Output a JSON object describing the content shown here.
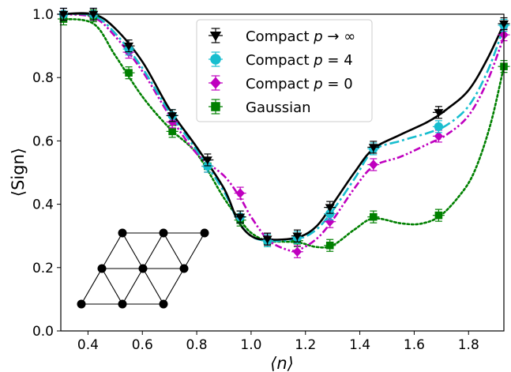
{
  "chart_data": {
    "type": "line",
    "xlabel": "⟨n⟩",
    "ylabel": "⟨Sign⟩",
    "xlim": [
      0.3,
      1.93
    ],
    "ylim": [
      0.0,
      1.0
    ],
    "xticks": [
      "0.4",
      "0.6",
      "0.8",
      "1.0",
      "1.2",
      "1.4",
      "1.6",
      "1.8"
    ],
    "yticks": [
      "0.0",
      "0.2",
      "0.4",
      "0.6",
      "0.8",
      "1.0"
    ],
    "grid": false,
    "legend_position": "top-center",
    "series": [
      {
        "name": "Compact p→∞",
        "legend_label": "Compact ",
        "legend_math": "p",
        "legend_tail": " → ∞",
        "color": "#000000",
        "marker": "triangle-down",
        "linestyle": "solid",
        "points": [
          [
            0.31,
            1.0
          ],
          [
            0.42,
            1.0
          ],
          [
            0.55,
            0.9
          ],
          [
            0.71,
            0.68
          ],
          [
            0.84,
            0.54
          ],
          [
            0.96,
            0.36
          ],
          [
            1.06,
            0.29
          ],
          [
            1.17,
            0.3
          ],
          [
            1.29,
            0.39
          ],
          [
            1.45,
            0.58
          ],
          [
            1.69,
            0.69
          ],
          [
            1.93,
            0.97
          ]
        ],
        "curve": [
          [
            0.3,
            1.0
          ],
          [
            0.42,
            1.0
          ],
          [
            0.5,
            0.955
          ],
          [
            0.6,
            0.85
          ],
          [
            0.7,
            0.7
          ],
          [
            0.8,
            0.58
          ],
          [
            0.9,
            0.45
          ],
          [
            0.95,
            0.35
          ],
          [
            1.0,
            0.3
          ],
          [
            1.06,
            0.288
          ],
          [
            1.17,
            0.295
          ],
          [
            1.24,
            0.33
          ],
          [
            1.3,
            0.4
          ],
          [
            1.38,
            0.5
          ],
          [
            1.45,
            0.575
          ],
          [
            1.55,
            0.62
          ],
          [
            1.65,
            0.66
          ],
          [
            1.72,
            0.7
          ],
          [
            1.8,
            0.76
          ],
          [
            1.87,
            0.86
          ],
          [
            1.93,
            0.97
          ]
        ]
      },
      {
        "name": "Compact p = 4",
        "legend_label": "Compact ",
        "legend_math": "p",
        "legend_tail": " = 4",
        "color": "#17becf",
        "marker": "circle",
        "linestyle": "dashdot",
        "points": [
          [
            0.31,
            1.0
          ],
          [
            0.42,
            1.0
          ],
          [
            0.55,
            0.89
          ],
          [
            0.71,
            0.68
          ],
          [
            0.84,
            0.52
          ],
          [
            0.96,
            0.36
          ],
          [
            1.06,
            0.285
          ],
          [
            1.17,
            0.295
          ],
          [
            1.29,
            0.37
          ],
          [
            1.45,
            0.575
          ],
          [
            1.69,
            0.645
          ],
          [
            1.93,
            0.965
          ]
        ],
        "curve": [
          [
            0.3,
            1.0
          ],
          [
            0.42,
            0.995
          ],
          [
            0.5,
            0.94
          ],
          [
            0.6,
            0.83
          ],
          [
            0.7,
            0.69
          ],
          [
            0.8,
            0.57
          ],
          [
            0.9,
            0.44
          ],
          [
            0.95,
            0.35
          ],
          [
            1.0,
            0.3
          ],
          [
            1.06,
            0.285
          ],
          [
            1.17,
            0.29
          ],
          [
            1.24,
            0.32
          ],
          [
            1.3,
            0.38
          ],
          [
            1.38,
            0.48
          ],
          [
            1.45,
            0.57
          ],
          [
            1.55,
            0.6
          ],
          [
            1.65,
            0.625
          ],
          [
            1.72,
            0.65
          ],
          [
            1.8,
            0.71
          ],
          [
            1.87,
            0.82
          ],
          [
            1.93,
            0.96
          ]
        ]
      },
      {
        "name": "Compact p = 0",
        "legend_label": "Compact ",
        "legend_math": "p",
        "legend_tail": " = 0",
        "color": "#bf00bf",
        "marker": "diamond",
        "linestyle": "dashdotdot",
        "points": [
          [
            0.31,
            1.0
          ],
          [
            0.42,
            1.0
          ],
          [
            0.55,
            0.88
          ],
          [
            0.71,
            0.66
          ],
          [
            0.84,
            0.52
          ],
          [
            0.96,
            0.435
          ],
          [
            1.06,
            0.29
          ],
          [
            1.17,
            0.25
          ],
          [
            1.29,
            0.345
          ],
          [
            1.45,
            0.525
          ],
          [
            1.69,
            0.615
          ],
          [
            1.93,
            0.935
          ]
        ],
        "curve": [
          [
            0.3,
            1.0
          ],
          [
            0.42,
            0.99
          ],
          [
            0.5,
            0.93
          ],
          [
            0.6,
            0.82
          ],
          [
            0.7,
            0.68
          ],
          [
            0.8,
            0.56
          ],
          [
            0.9,
            0.49
          ],
          [
            0.96,
            0.42
          ],
          [
            1.0,
            0.36
          ],
          [
            1.06,
            0.29
          ],
          [
            1.12,
            0.26
          ],
          [
            1.17,
            0.255
          ],
          [
            1.24,
            0.29
          ],
          [
            1.3,
            0.35
          ],
          [
            1.38,
            0.45
          ],
          [
            1.45,
            0.52
          ],
          [
            1.55,
            0.55
          ],
          [
            1.65,
            0.59
          ],
          [
            1.72,
            0.62
          ],
          [
            1.8,
            0.68
          ],
          [
            1.87,
            0.79
          ],
          [
            1.93,
            0.93
          ]
        ]
      },
      {
        "name": "Gaussian",
        "legend_label": "Gaussian",
        "legend_math": "",
        "legend_tail": "",
        "color": "#008000",
        "marker": "square",
        "linestyle": "dotted",
        "points": [
          [
            0.31,
            0.985
          ],
          [
            0.42,
            0.995
          ],
          [
            0.55,
            0.815
          ],
          [
            0.71,
            0.63
          ],
          [
            0.84,
            0.52
          ],
          [
            0.96,
            0.35
          ],
          [
            1.06,
            0.285
          ],
          [
            1.17,
            0.285
          ],
          [
            1.29,
            0.27
          ],
          [
            1.45,
            0.36
          ],
          [
            1.69,
            0.365
          ],
          [
            1.93,
            0.835
          ]
        ],
        "curve": [
          [
            0.3,
            0.985
          ],
          [
            0.42,
            0.97
          ],
          [
            0.5,
            0.87
          ],
          [
            0.6,
            0.74
          ],
          [
            0.7,
            0.64
          ],
          [
            0.8,
            0.56
          ],
          [
            0.9,
            0.42
          ],
          [
            0.96,
            0.35
          ],
          [
            1.0,
            0.31
          ],
          [
            1.06,
            0.285
          ],
          [
            1.17,
            0.28
          ],
          [
            1.24,
            0.265
          ],
          [
            1.3,
            0.27
          ],
          [
            1.38,
            0.32
          ],
          [
            1.45,
            0.355
          ],
          [
            1.55,
            0.34
          ],
          [
            1.62,
            0.338
          ],
          [
            1.69,
            0.36
          ],
          [
            1.76,
            0.42
          ],
          [
            1.82,
            0.5
          ],
          [
            1.88,
            0.65
          ],
          [
            1.93,
            0.835
          ]
        ]
      }
    ],
    "inset": {
      "description": "triangular lattice",
      "nodes": [
        [
          0.0,
          0.0
        ],
        [
          1.0,
          0.0
        ],
        [
          2.0,
          0.0
        ],
        [
          0.5,
          1.0
        ],
        [
          1.5,
          1.0
        ],
        [
          2.5,
          1.0
        ],
        [
          1.0,
          2.0
        ],
        [
          2.0,
          2.0
        ],
        [
          3.0,
          2.0
        ]
      ],
      "edges": [
        [
          0,
          1
        ],
        [
          1,
          2
        ],
        [
          3,
          4
        ],
        [
          4,
          5
        ],
        [
          6,
          7
        ],
        [
          7,
          8
        ],
        [
          0,
          3
        ],
        [
          3,
          6
        ],
        [
          1,
          4
        ],
        [
          4,
          7
        ],
        [
          2,
          5
        ],
        [
          5,
          8
        ],
        [
          3,
          1
        ],
        [
          6,
          4
        ],
        [
          4,
          2
        ],
        [
          7,
          5
        ]
      ]
    }
  }
}
